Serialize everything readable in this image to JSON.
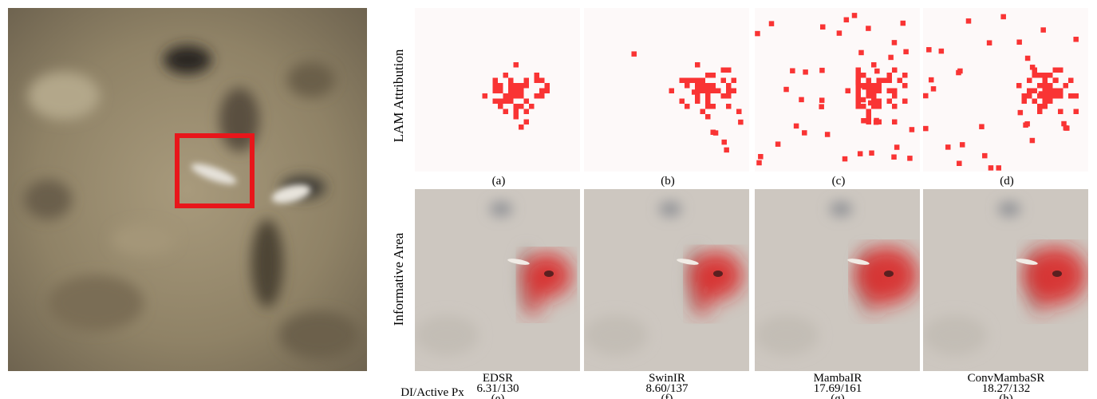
{
  "row_labels": {
    "lam": "LAM Attribution",
    "area": "Informative Area",
    "metric": "DI/Active Px"
  },
  "lam_panels": [
    {
      "letter": "(a)"
    },
    {
      "letter": "(b)"
    },
    {
      "letter": "(c)"
    },
    {
      "letter": "(d)"
    }
  ],
  "methods": [
    {
      "name": "EDSR",
      "score": "6.31/130",
      "letter": "(e)"
    },
    {
      "name": "SwinIR",
      "score": "8.60/137",
      "letter": "(f)"
    },
    {
      "name": "MambaIR",
      "score": "17.69/161",
      "letter": "(g)"
    },
    {
      "name": "ConvMambaSR",
      "score": "18.27/132",
      "letter": "(h)"
    }
  ]
}
